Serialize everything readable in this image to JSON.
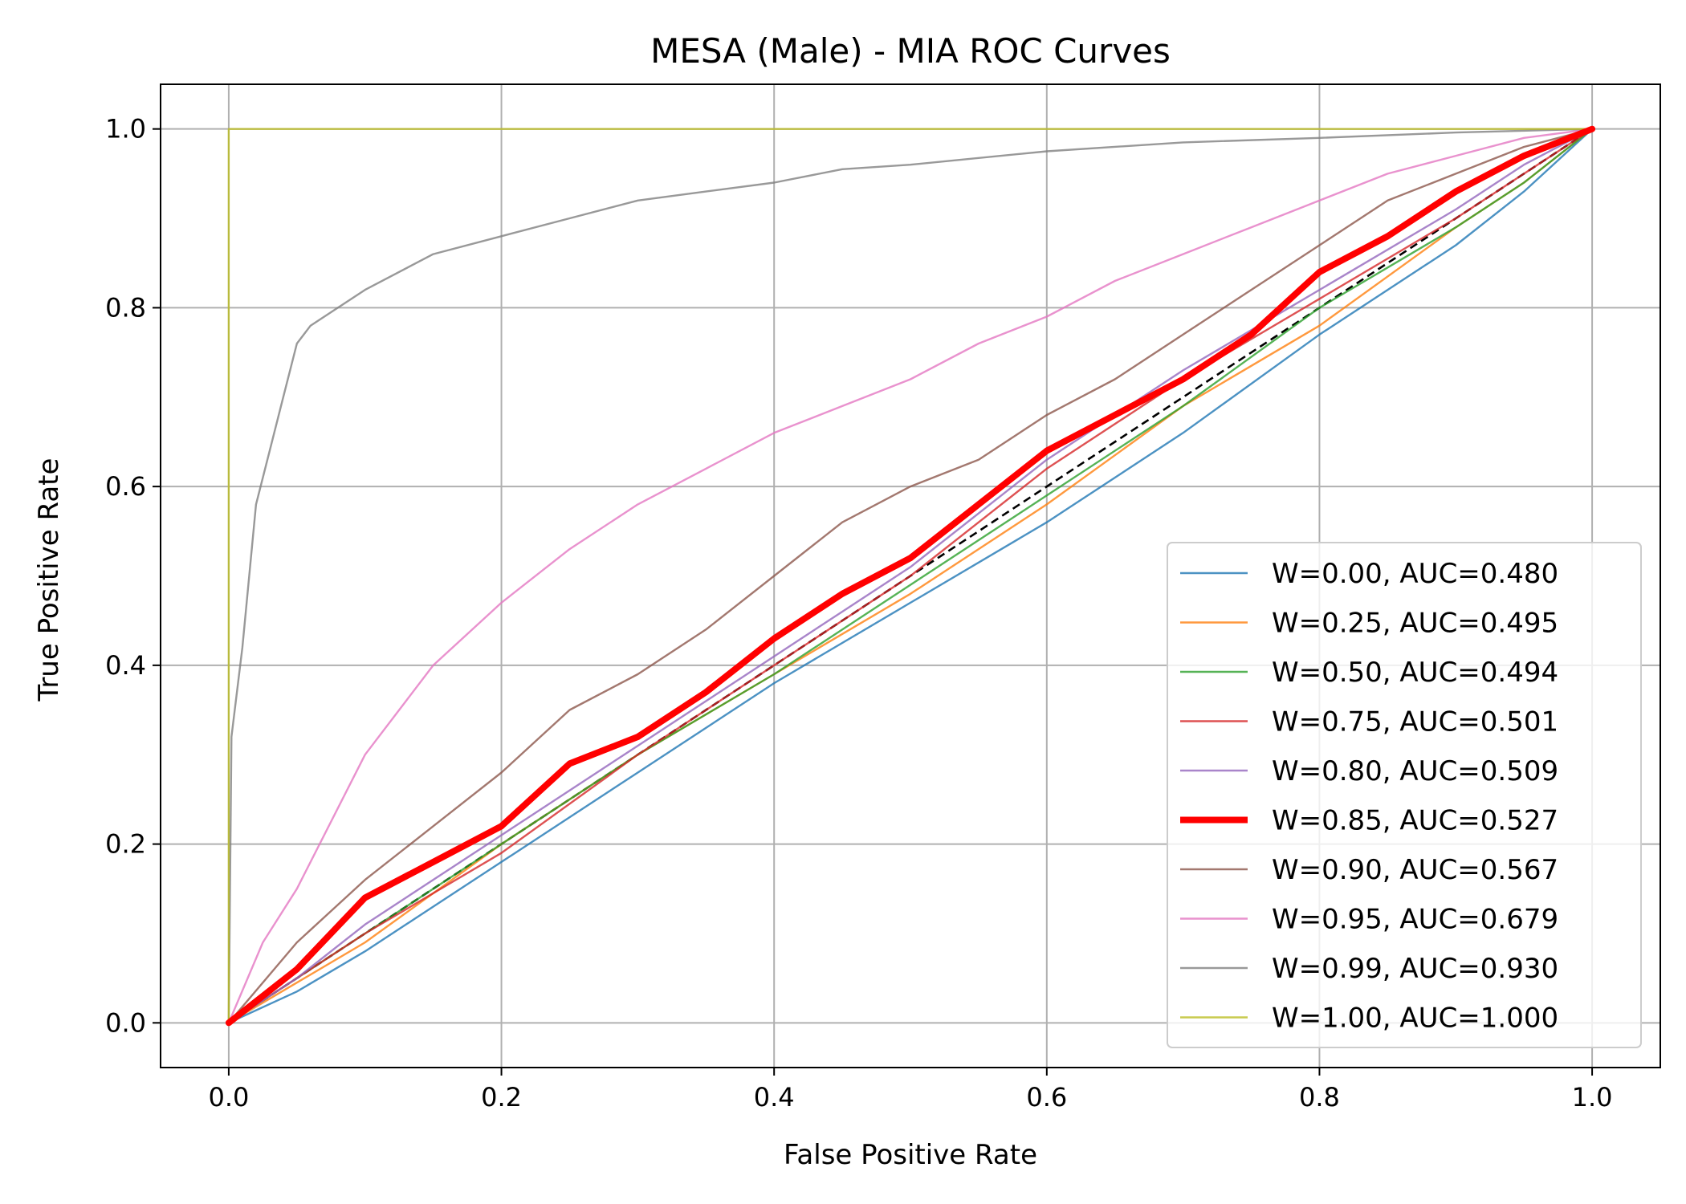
{
  "chart_data": {
    "type": "line",
    "title": "MESA (Male) - MIA ROC Curves",
    "xlabel": "False Positive Rate",
    "ylabel": "True Positive Rate",
    "xlim": [
      -0.05,
      1.05
    ],
    "ylim": [
      -0.05,
      1.05
    ],
    "xticks": [
      0.0,
      0.2,
      0.4,
      0.6,
      0.8,
      1.0
    ],
    "yticks": [
      0.0,
      0.2,
      0.4,
      0.6,
      0.8,
      1.0
    ],
    "xtick_labels": [
      "0.0",
      "0.2",
      "0.4",
      "0.6",
      "0.8",
      "1.0"
    ],
    "ytick_labels": [
      "0.0",
      "0.2",
      "0.4",
      "0.6",
      "0.8",
      "1.0"
    ],
    "grid": true,
    "legend_position": "lower-right",
    "series": [
      {
        "name": "W=0.00, AUC=0.480",
        "color": "#1f77b4",
        "highlight": false,
        "x": [
          0,
          0.05,
          0.1,
          0.2,
          0.3,
          0.4,
          0.5,
          0.6,
          0.7,
          0.8,
          0.9,
          0.95,
          1.0
        ],
        "y": [
          0,
          0.035,
          0.08,
          0.18,
          0.28,
          0.38,
          0.47,
          0.56,
          0.66,
          0.77,
          0.87,
          0.93,
          1.0
        ]
      },
      {
        "name": "W=0.25, AUC=0.495",
        "color": "#ff7f0e",
        "highlight": false,
        "x": [
          0,
          0.05,
          0.1,
          0.2,
          0.3,
          0.4,
          0.5,
          0.6,
          0.7,
          0.8,
          0.9,
          0.95,
          1.0
        ],
        "y": [
          0,
          0.045,
          0.09,
          0.2,
          0.3,
          0.39,
          0.48,
          0.58,
          0.69,
          0.78,
          0.89,
          0.94,
          1.0
        ]
      },
      {
        "name": "W=0.50, AUC=0.494",
        "color": "#2ca02c",
        "highlight": false,
        "x": [
          0,
          0.05,
          0.1,
          0.2,
          0.3,
          0.4,
          0.5,
          0.6,
          0.7,
          0.8,
          0.9,
          0.95,
          1.0
        ],
        "y": [
          0,
          0.05,
          0.1,
          0.2,
          0.3,
          0.39,
          0.49,
          0.59,
          0.69,
          0.8,
          0.89,
          0.94,
          1.0
        ]
      },
      {
        "name": "W=0.75, AUC=0.501",
        "color": "#d62728",
        "highlight": false,
        "x": [
          0,
          0.05,
          0.1,
          0.2,
          0.3,
          0.4,
          0.5,
          0.6,
          0.7,
          0.8,
          0.9,
          0.95,
          1.0
        ],
        "y": [
          0,
          0.05,
          0.1,
          0.19,
          0.3,
          0.4,
          0.5,
          0.62,
          0.72,
          0.81,
          0.9,
          0.95,
          1.0
        ]
      },
      {
        "name": "W=0.80, AUC=0.509",
        "color": "#9467bd",
        "highlight": false,
        "x": [
          0,
          0.05,
          0.1,
          0.2,
          0.3,
          0.4,
          0.5,
          0.6,
          0.7,
          0.8,
          0.9,
          0.95,
          1.0
        ],
        "y": [
          0,
          0.05,
          0.11,
          0.21,
          0.31,
          0.41,
          0.51,
          0.63,
          0.73,
          0.82,
          0.91,
          0.96,
          1.0
        ]
      },
      {
        "name": "W=0.85, AUC=0.527",
        "color": "#ff0000",
        "highlight": true,
        "x": [
          0,
          0.05,
          0.1,
          0.15,
          0.2,
          0.25,
          0.3,
          0.35,
          0.4,
          0.45,
          0.5,
          0.55,
          0.6,
          0.65,
          0.7,
          0.75,
          0.8,
          0.85,
          0.9,
          0.95,
          1.0
        ],
        "y": [
          0,
          0.06,
          0.14,
          0.18,
          0.22,
          0.29,
          0.32,
          0.37,
          0.43,
          0.48,
          0.52,
          0.58,
          0.64,
          0.68,
          0.72,
          0.77,
          0.84,
          0.88,
          0.93,
          0.97,
          1.0
        ]
      },
      {
        "name": "W=0.90, AUC=0.567",
        "color": "#8c564b",
        "highlight": false,
        "x": [
          0,
          0.05,
          0.1,
          0.15,
          0.2,
          0.25,
          0.3,
          0.35,
          0.4,
          0.45,
          0.5,
          0.55,
          0.6,
          0.65,
          0.7,
          0.75,
          0.8,
          0.85,
          0.9,
          0.95,
          1.0
        ],
        "y": [
          0,
          0.09,
          0.16,
          0.22,
          0.28,
          0.35,
          0.39,
          0.44,
          0.5,
          0.56,
          0.6,
          0.63,
          0.68,
          0.72,
          0.77,
          0.82,
          0.87,
          0.92,
          0.95,
          0.98,
          1.0
        ]
      },
      {
        "name": "W=0.95, AUC=0.679",
        "color": "#e377c2",
        "highlight": false,
        "x": [
          0,
          0.025,
          0.05,
          0.1,
          0.15,
          0.2,
          0.25,
          0.3,
          0.35,
          0.4,
          0.45,
          0.5,
          0.55,
          0.6,
          0.65,
          0.7,
          0.75,
          0.8,
          0.85,
          0.9,
          0.95,
          1.0
        ],
        "y": [
          0,
          0.09,
          0.15,
          0.3,
          0.4,
          0.47,
          0.53,
          0.58,
          0.62,
          0.66,
          0.69,
          0.72,
          0.76,
          0.79,
          0.83,
          0.86,
          0.89,
          0.92,
          0.95,
          0.97,
          0.99,
          1.0
        ]
      },
      {
        "name": "W=0.99, AUC=0.930",
        "color": "#7f7f7f",
        "highlight": false,
        "x": [
          0,
          0.002,
          0.01,
          0.015,
          0.02,
          0.03,
          0.04,
          0.05,
          0.06,
          0.08,
          0.1,
          0.15,
          0.2,
          0.25,
          0.3,
          0.35,
          0.4,
          0.45,
          0.5,
          0.6,
          0.7,
          0.8,
          0.9,
          1.0
        ],
        "y": [
          0,
          0.32,
          0.42,
          0.5,
          0.58,
          0.64,
          0.7,
          0.76,
          0.78,
          0.8,
          0.82,
          0.86,
          0.88,
          0.9,
          0.92,
          0.93,
          0.94,
          0.955,
          0.96,
          0.975,
          0.985,
          0.99,
          0.996,
          1.0
        ]
      },
      {
        "name": "W=1.00, AUC=1.000",
        "color": "#bcbd22",
        "highlight": false,
        "x": [
          0,
          0,
          1.0
        ],
        "y": [
          0,
          1.0,
          1.0
        ]
      }
    ],
    "reference_line": {
      "x": [
        0,
        1
      ],
      "y": [
        0,
        1
      ],
      "color": "#000000",
      "style": "dashed"
    }
  }
}
